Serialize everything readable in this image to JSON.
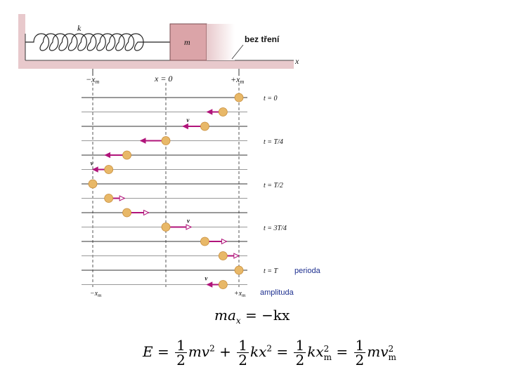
{
  "top": {
    "k_label": "k",
    "m_label": "m",
    "friction_label": "bez tření",
    "x_axis_label": "x",
    "minus_xm": "−x",
    "x_zero": "x = 0",
    "plus_xm": "+x",
    "m_sub": "m"
  },
  "timeline": {
    "time_labels": [
      "t = 0",
      "t = T/4",
      "t = T/2",
      "t = 3T/4",
      "t = T"
    ],
    "v_label": "v",
    "bottom_minus_xm": "−x",
    "bottom_plus_xm": "+x",
    "m_sub": "m",
    "positions": [
      1.0,
      0.782,
      0.533,
      0.0,
      -0.533,
      -0.782,
      -1.0,
      -0.782,
      -0.533,
      0.0,
      0.533,
      0.782,
      1.0,
      0.782
    ],
    "arrow_dir": [
      0,
      -1,
      -1,
      -1,
      -1,
      -1,
      0,
      1,
      1,
      1,
      1,
      1,
      0,
      -1
    ],
    "arrow_len": [
      0,
      0.45,
      0.62,
      0.72,
      0.62,
      0.45,
      0,
      0.45,
      0.62,
      0.72,
      0.62,
      0.45,
      0,
      0.45
    ],
    "v_rows": [
      2,
      5,
      9,
      13
    ]
  },
  "annotations": {
    "perioda": "perioda",
    "amplituda": "amplituda"
  },
  "equations": {
    "eq1": {
      "ma": "ma",
      "sub_x": "x",
      "rhs": " = −kx"
    },
    "eq2": {
      "E": "E",
      "eq": " = ",
      "one": "1",
      "two": "2",
      "mv": "mv",
      "sq": "2",
      "plus": " + ",
      "kx": "kx",
      "kx_m": "kx",
      "mv_m": "mv",
      "sub_m": "m"
    }
  },
  "colors": {
    "wall": "#e8c9cc",
    "block": "#dba4a8",
    "arrow": "#b0147a",
    "ball": "#e8b868",
    "ball_edge": "#c78c3a"
  }
}
